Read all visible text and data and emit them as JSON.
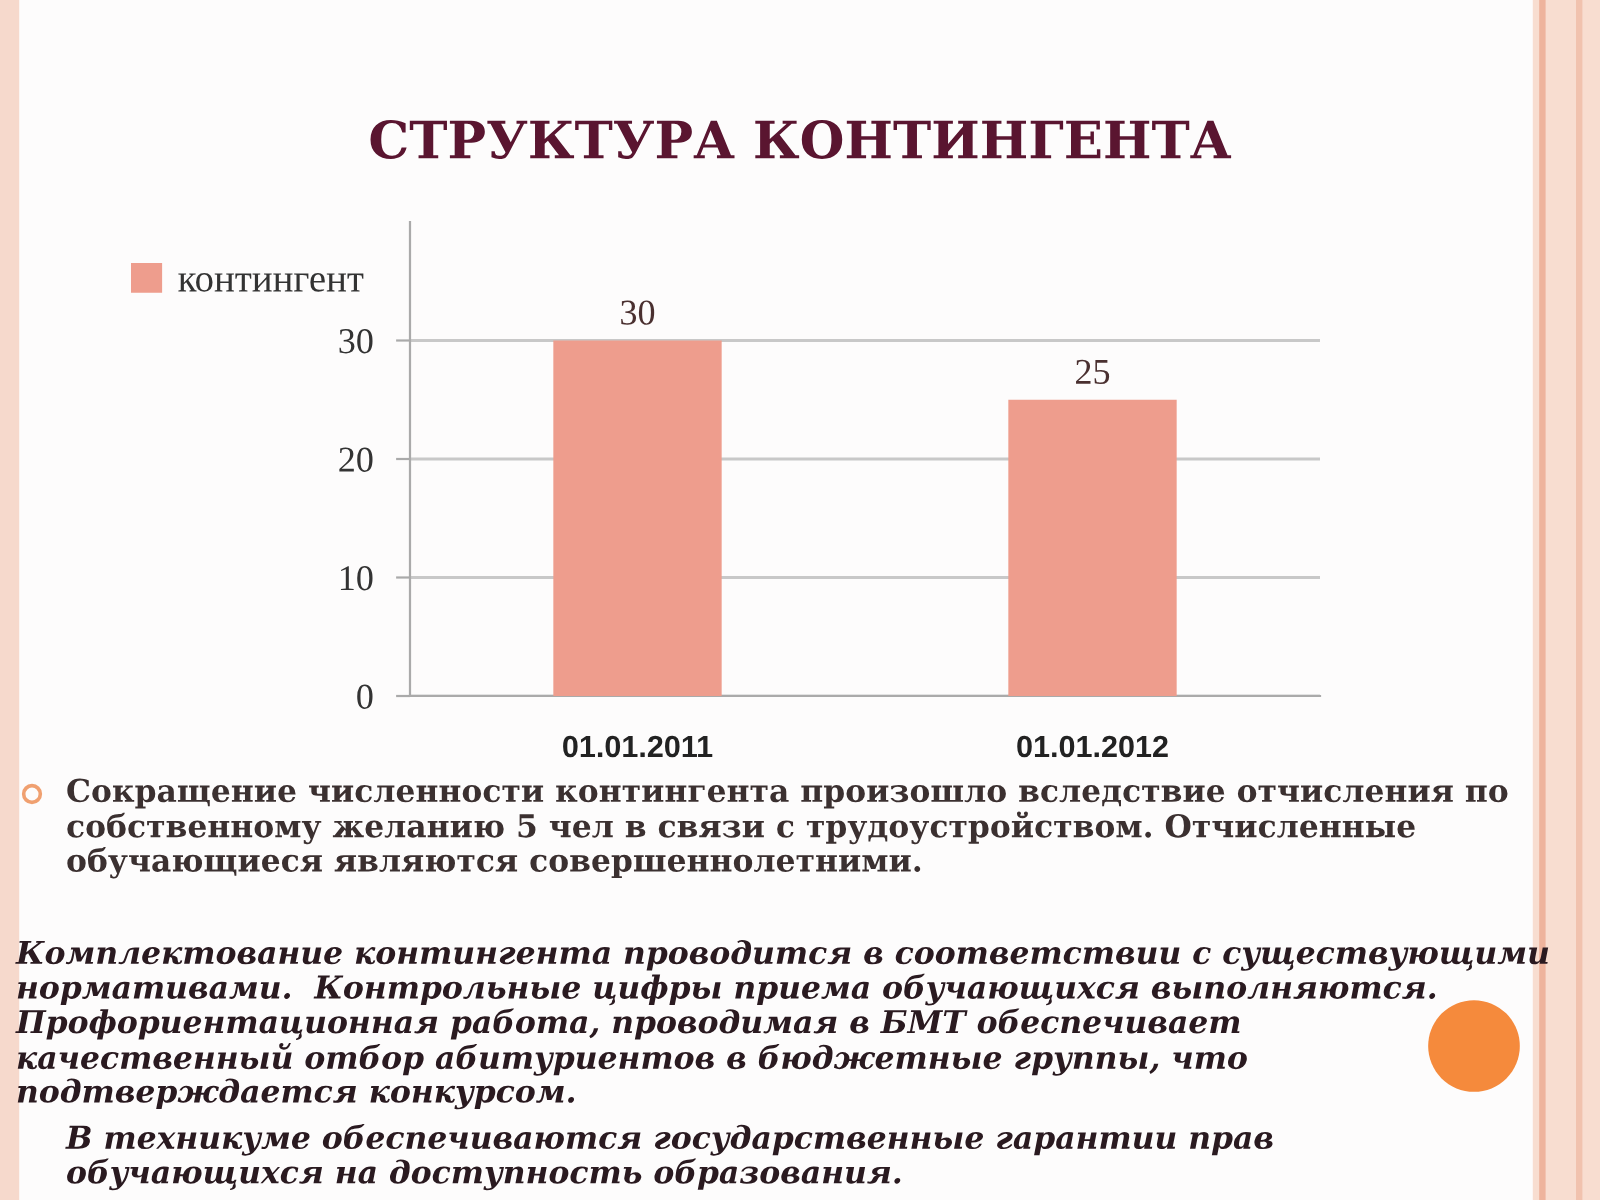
{
  "chart_data": {
    "type": "bar",
    "title": "СТРУКТУРА КОНТИНГЕНТА",
    "categories": [
      "01.01.2011",
      "01.01.2012"
    ],
    "series": [
      {
        "name": "контингент",
        "color": "#ee9d8d",
        "values": [
          30,
          25
        ]
      }
    ],
    "ylim": [
      0,
      40
    ],
    "yticks": [
      0,
      10,
      20,
      30
    ],
    "grid": "y",
    "legend": "top left",
    "data_labels": true,
    "annotations": [
      "Сокращение численности контингента произошло вследствие отчисления по\nсобственному желанию 5 чел в связи с трудоустройством. Отчисленные\nобучающиеся являются совершеннолетними.",
      "Комплектование контингента проводится в соответствии с существующими\nнормативами.  Контрольные цифры приема обучающихся выполняются.\nПрофориентационная работа, проводимая в БМТ обеспечивает\nкачественный отбор абитуриентов в бюджетные группы, что\nподтверждается конкурсом.",
      "В техникуме обеспечиваются государственные гарантии прав\nобучающихся на доступность образования."
    ]
  }
}
